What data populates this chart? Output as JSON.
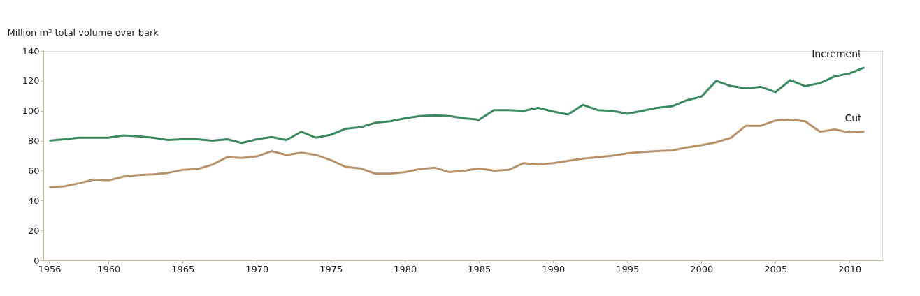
{
  "chart_data": {
    "type": "line",
    "ylabel": "Million m³ total volume over bark",
    "x": [
      1956,
      1957,
      1958,
      1959,
      1960,
      1961,
      1962,
      1963,
      1964,
      1965,
      1966,
      1967,
      1968,
      1969,
      1970,
      1971,
      1972,
      1973,
      1974,
      1975,
      1976,
      1977,
      1978,
      1979,
      1980,
      1981,
      1982,
      1983,
      1984,
      1985,
      1986,
      1987,
      1988,
      1989,
      1990,
      1991,
      1992,
      1993,
      1994,
      1995,
      1996,
      1997,
      1998,
      1999,
      2000,
      2001,
      2002,
      2003,
      2004,
      2005,
      2006,
      2007,
      2008,
      2009,
      2010,
      2011
    ],
    "series": [
      {
        "name": "Increment",
        "color": "#3a8a5e",
        "values": [
          80,
          81,
          82,
          82,
          82,
          83.5,
          83,
          82,
          80.5,
          81,
          81,
          80,
          81,
          78.5,
          81,
          82.5,
          80.5,
          86,
          82,
          84,
          88,
          89,
          92,
          93,
          95,
          96.5,
          97,
          96.5,
          95,
          94,
          100.5,
          100.5,
          100,
          102,
          99.5,
          97.5,
          104,
          100.5,
          100,
          98,
          100,
          102,
          103,
          107,
          109.5,
          120,
          116.5,
          115,
          116,
          112.5,
          120.5,
          116.5,
          118.5,
          123,
          125,
          129
        ]
      },
      {
        "name": "Cut",
        "color": "#b8926a",
        "values": [
          49,
          49.5,
          51.5,
          54,
          53.5,
          56,
          57,
          57.5,
          58.5,
          60.5,
          61,
          64,
          69,
          68.5,
          69.5,
          73,
          70.5,
          72,
          70.5,
          67,
          62.5,
          61.5,
          58,
          58,
          59,
          61,
          62,
          59,
          60,
          61.5,
          60,
          60.5,
          65,
          64,
          65,
          66.5,
          68,
          69,
          70,
          71.5,
          72.5,
          73,
          73.5,
          75.5,
          77,
          79,
          82,
          90,
          90,
          93.5,
          94,
          93,
          86,
          87.5,
          85.5,
          86
        ]
      }
    ],
    "xlim": [
      1955.6,
      2012.2
    ],
    "xticks": [
      1956,
      1960,
      1965,
      1970,
      1975,
      1980,
      1985,
      1990,
      1995,
      2000,
      2005,
      2010
    ],
    "ylim": [
      0,
      140
    ],
    "yticks": [
      0,
      20,
      40,
      60,
      80,
      100,
      120,
      140
    ],
    "grid": false,
    "legend": false,
    "marker": "none",
    "line_style": "solid"
  }
}
